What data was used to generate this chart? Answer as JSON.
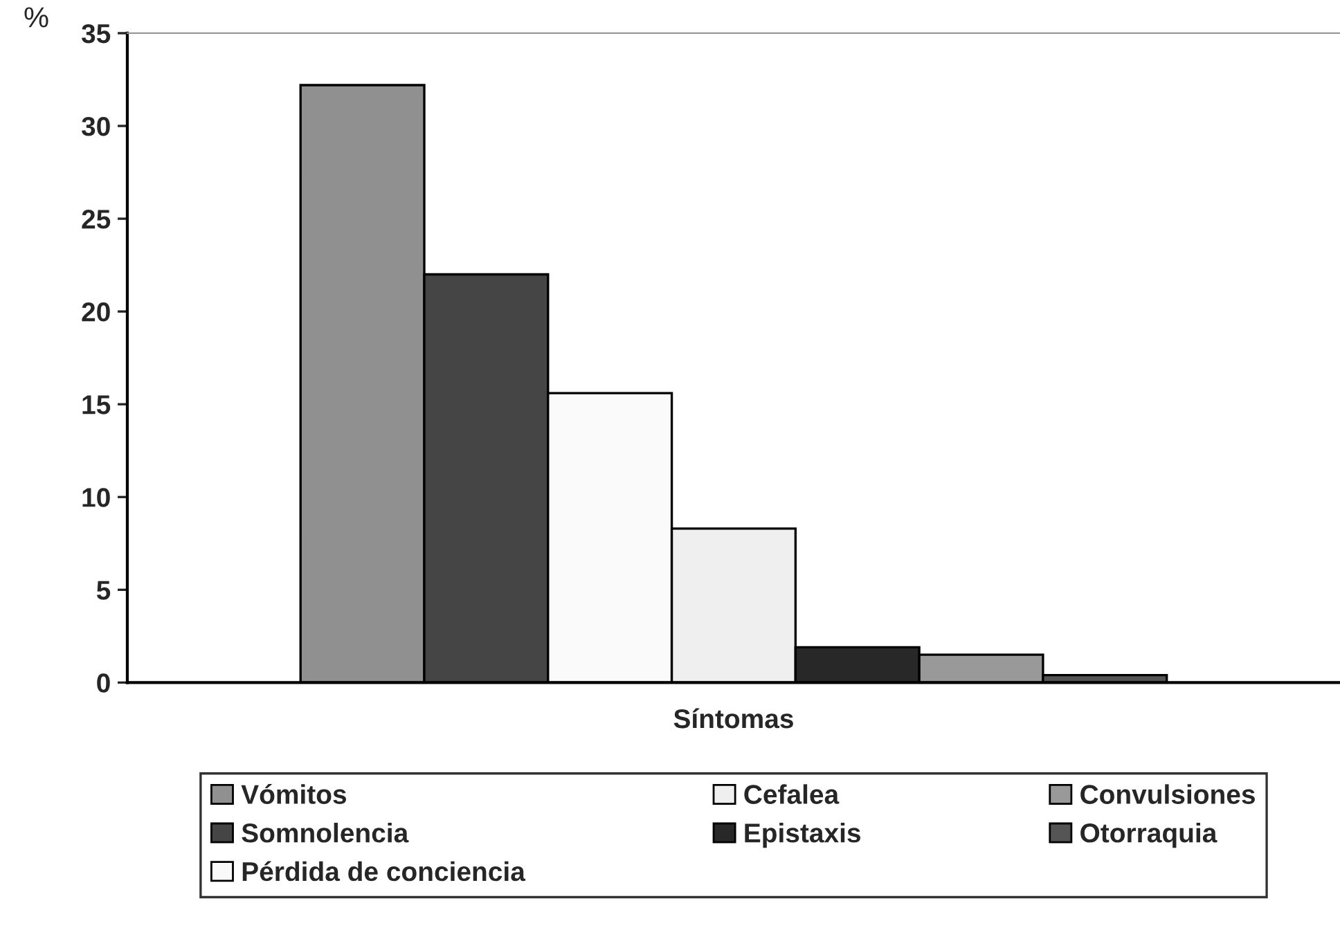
{
  "chart_data": {
    "type": "bar",
    "xlabel": "Síntomas",
    "ylabel": "%",
    "categories": [
      null
    ],
    "series": [
      {
        "name": "Vómitos",
        "color": "#909090",
        "values": [
          32.2
        ]
      },
      {
        "name": "Somnolencia",
        "color": "#454545",
        "values": [
          22.0
        ]
      },
      {
        "name": "Pérdida de conciencia",
        "color": "#fafafa",
        "values": [
          15.6
        ]
      },
      {
        "name": "Cefalea",
        "color": "#efefef",
        "values": [
          8.3
        ]
      },
      {
        "name": "Epistaxis",
        "color": "#282828",
        "values": [
          1.9
        ]
      },
      {
        "name": "Convulsiones",
        "color": "#999999",
        "values": [
          1.5
        ]
      },
      {
        "name": "Otorraquia",
        "color": "#555555",
        "values": [
          0.4
        ]
      }
    ],
    "ylim": [
      0,
      35
    ],
    "yticks": [
      0,
      5,
      10,
      15,
      20,
      25,
      30,
      35
    ],
    "grid": false,
    "legend": "bottom"
  }
}
